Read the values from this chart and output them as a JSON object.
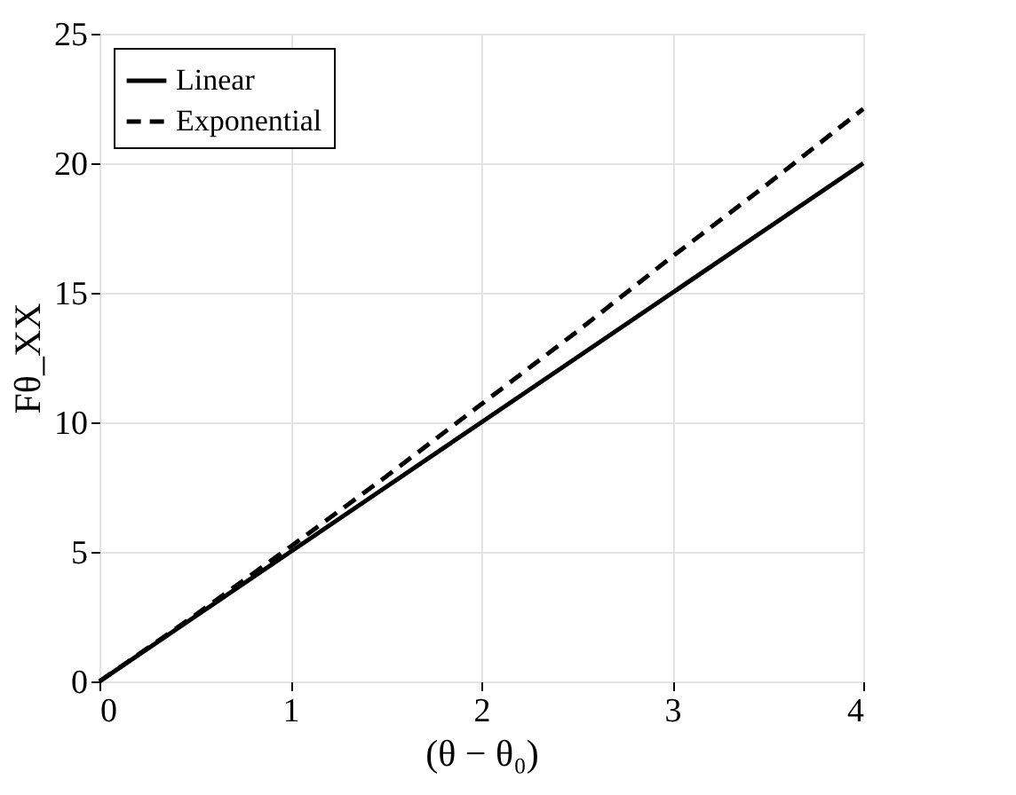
{
  "chart_data": {
    "type": "line",
    "xlabel": "(θ − θ₀)",
    "ylabel": "Fθ_XX",
    "x": [
      0,
      0.5,
      1,
      1.5,
      2,
      2.5,
      3,
      3.5,
      4
    ],
    "series": [
      {
        "name": "Linear",
        "color": "#000000",
        "line_style": "solid",
        "values": [
          0,
          2.5,
          5,
          7.5,
          10,
          12.5,
          15,
          17.5,
          20
        ]
      },
      {
        "name": "Exponential",
        "color": "#000000",
        "line_style": "dashed",
        "values": [
          0,
          2.55,
          5.2,
          7.9,
          10.7,
          13.5,
          16.4,
          19.2,
          22.1
        ]
      }
    ],
    "xlim": [
      0,
      4
    ],
    "ylim": [
      0,
      25
    ],
    "xticks": [
      0,
      1,
      2,
      3,
      4
    ],
    "yticks": [
      0,
      5,
      10,
      15,
      20,
      25
    ],
    "grid": true,
    "legend": "top left",
    "marker": "none"
  }
}
